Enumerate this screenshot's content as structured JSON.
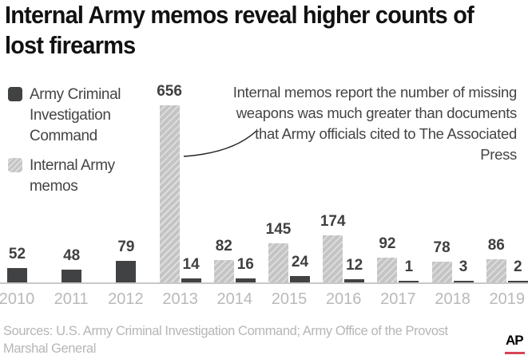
{
  "title": "Internal Army memos reveal higher counts of lost firearms",
  "legend": [
    {
      "label": "Army Criminal Investigation Command",
      "style": "solid",
      "color": "#414243"
    },
    {
      "label": "Internal Army memos",
      "style": "hatched",
      "color": "#c4c4c4"
    }
  ],
  "annotation": "Internal memos report the number of missing weapons was much greater than documents that Army officials cited to The Associated Press",
  "source": "Sources: U.S. Army Criminal Investigation Command; Army Office of the Provost Marshal General",
  "credit": "AP",
  "chart_data": {
    "type": "bar",
    "title": "Internal Army memos reveal higher counts of lost firearms",
    "xlabel": "",
    "ylabel": "",
    "categories": [
      "2010",
      "2011",
      "2012",
      "2013",
      "2014",
      "2015",
      "2016",
      "2017",
      "2018",
      "2019"
    ],
    "series": [
      {
        "name": "Internal Army memos",
        "values": [
          null,
          null,
          null,
          656,
          82,
          145,
          174,
          92,
          78,
          86
        ]
      },
      {
        "name": "Army Criminal Investigation Command",
        "values": [
          52,
          48,
          79,
          14,
          16,
          24,
          12,
          1,
          3,
          2
        ]
      }
    ],
    "grid": false,
    "legend_position": "top-left",
    "annotations": [
      "Internal memos report the number of missing weapons was much greater than documents that Army officials cited to The Associated Press"
    ]
  }
}
